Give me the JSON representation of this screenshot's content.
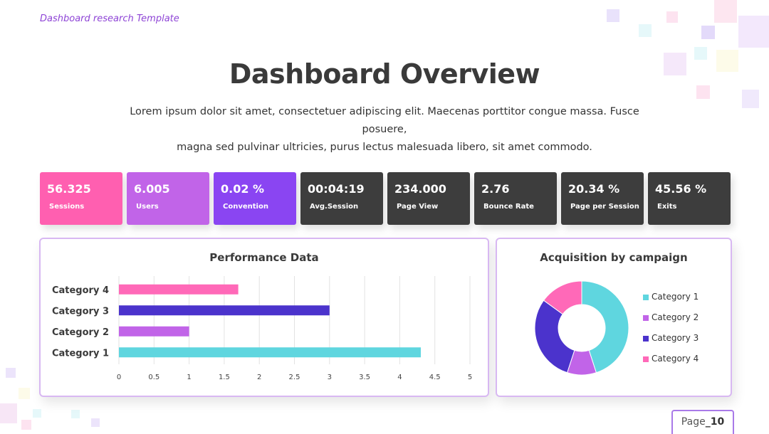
{
  "header": {
    "template_label": "Dashboard research Template",
    "title": "Dashboard Overview",
    "subtitle_line1": "Lorem ipsum dolor sit amet, consectetuer adipiscing elit. Maecenas porttitor congue massa. Fusce posuere,",
    "subtitle_line2": "magna sed pulvinar ultricies, purus lectus malesuada libero, sit amet commodo."
  },
  "kpis": [
    {
      "value": "56.325",
      "label": "Sessions",
      "color": "#ff5fb0"
    },
    {
      "value": "6.005",
      "label": "Users",
      "color": "#c164e8"
    },
    {
      "value": "0.02 %",
      "label": "Convention",
      "color": "#8a45f2"
    },
    {
      "value": "00:04:19",
      "label": "Avg.Session",
      "color": "#3d3d3d"
    },
    {
      "value": "234.000",
      "label": "Page View",
      "color": "#3d3d3d"
    },
    {
      "value": "2.76",
      "label": "Bounce Rate",
      "color": "#3d3d3d"
    },
    {
      "value": "20.34 %",
      "label": "Page per Session",
      "color": "#3d3d3d"
    },
    {
      "value": "45.56 %",
      "label": "Exits",
      "color": "#3d3d3d"
    }
  ],
  "chart_data": [
    {
      "type": "bar",
      "orientation": "horizontal",
      "title": "Performance Data",
      "categories": [
        "Category 1",
        "Category 2",
        "Category 3",
        "Category 4"
      ],
      "values": [
        4.3,
        1.0,
        3.0,
        1.7
      ],
      "colors": [
        "#5fd6df",
        "#c164e8",
        "#4b33cc",
        "#ff69b8"
      ],
      "xlim": [
        0,
        5
      ],
      "xticks": [
        "0",
        "0.5",
        "1",
        "1.5",
        "2",
        "2.5",
        "3",
        "3.5",
        "4",
        "4.5",
        "5"
      ],
      "grid": true
    },
    {
      "type": "pie",
      "donut": true,
      "title": "Acquisition by campaign",
      "categories": [
        "Category 1",
        "Category 2",
        "Category 3",
        "Category 4"
      ],
      "values": [
        45,
        10,
        30,
        15
      ],
      "colors": [
        "#5fd6df",
        "#c164e8",
        "#4b33cc",
        "#ff69b8"
      ],
      "legend": "right"
    }
  ],
  "footer": {
    "page_prefix": "Page",
    "page_number": "_10"
  }
}
